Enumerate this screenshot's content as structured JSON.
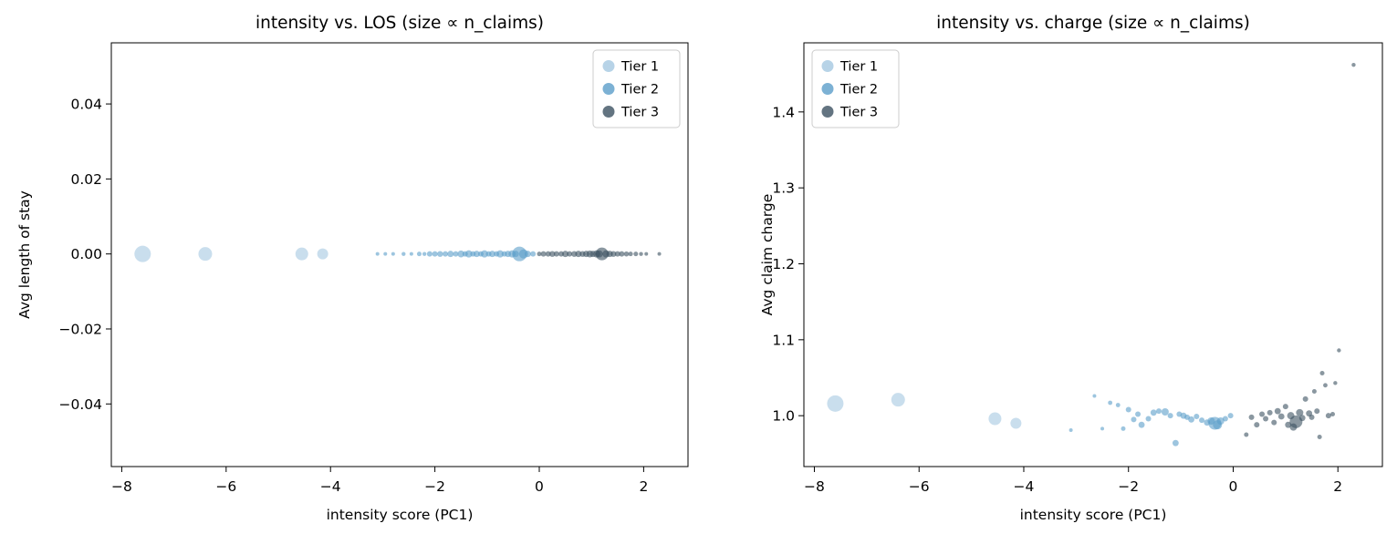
{
  "figure": {
    "background": "#ffffff",
    "spine_color": "#000000",
    "tier_colors": {
      "tier1": "#a5c8e1",
      "tier2": "#5b9ec9",
      "tier3": "#3c5161"
    }
  },
  "chart_data": [
    {
      "type": "scatter",
      "title": "intensity vs. LOS (size ∝ n_claims)",
      "xlabel": "intensity score (PC1)",
      "ylabel": "Avg length of stay",
      "xlim": [
        -8.2,
        2.85
      ],
      "ylim": [
        -0.0567,
        0.0563
      ],
      "xticks": [
        -8,
        -6,
        -4,
        -2,
        0,
        2
      ],
      "xtick_labels": [
        "−8",
        "−6",
        "−4",
        "−2",
        "0",
        "2"
      ],
      "yticks": [
        -0.04,
        -0.02,
        0.0,
        0.02,
        0.04
      ],
      "ytick_labels": [
        "−0.04",
        "−0.02",
        "0.00",
        "0.02",
        "0.04"
      ],
      "grid": false,
      "legend": {
        "position": "top-right",
        "entries": [
          {
            "label": "Tier 1",
            "color": "#a5c8e1"
          },
          {
            "label": "Tier 2",
            "color": "#5b9ec9"
          },
          {
            "label": "Tier 3",
            "color": "#3c5161"
          }
        ]
      },
      "series": [
        {
          "name": "Tier 1",
          "color": "#a5c8e1",
          "points": [
            [
              -7.6,
              0,
              9
            ],
            [
              -6.4,
              0,
              7.5
            ],
            [
              -4.55,
              0,
              7
            ],
            [
              -4.15,
              0,
              6
            ]
          ]
        },
        {
          "name": "Tier 2",
          "color": "#5b9ec9",
          "points": [
            [
              -3.1,
              0,
              2
            ],
            [
              -2.95,
              0,
              2
            ],
            [
              -2.8,
              0,
              2
            ],
            [
              -2.6,
              0,
              2.2
            ],
            [
              -2.45,
              0,
              2
            ],
            [
              -2.3,
              0,
              2.5
            ],
            [
              -2.2,
              0,
              2.2
            ],
            [
              -2.1,
              0,
              3
            ],
            [
              -2.0,
              0,
              3
            ],
            [
              -1.9,
              0,
              3.2
            ],
            [
              -1.8,
              0,
              3
            ],
            [
              -1.7,
              0,
              3.5
            ],
            [
              -1.6,
              0,
              3
            ],
            [
              -1.5,
              0,
              3.8
            ],
            [
              -1.42,
              0,
              3
            ],
            [
              -1.35,
              0,
              4
            ],
            [
              -1.27,
              0,
              3
            ],
            [
              -1.2,
              0,
              3.5
            ],
            [
              -1.12,
              0,
              3
            ],
            [
              -1.05,
              0,
              4
            ],
            [
              -0.97,
              0,
              3
            ],
            [
              -0.9,
              0,
              3.5
            ],
            [
              -0.82,
              0,
              3
            ],
            [
              -0.75,
              0,
              4
            ],
            [
              -0.67,
              0,
              3
            ],
            [
              -0.6,
              0,
              3.5
            ],
            [
              -0.52,
              0,
              4
            ],
            [
              -0.45,
              0,
              3.5
            ],
            [
              -0.38,
              0,
              8
            ],
            [
              -0.3,
              0,
              5
            ],
            [
              -0.22,
              0,
              3.5
            ],
            [
              -0.12,
              0,
              3
            ]
          ]
        },
        {
          "name": "Tier 3",
          "color": "#3c5161",
          "points": [
            [
              0.0,
              0,
              2.5
            ],
            [
              0.08,
              0,
              3
            ],
            [
              0.17,
              0,
              3
            ],
            [
              0.25,
              0,
              3.2
            ],
            [
              0.33,
              0,
              3
            ],
            [
              0.42,
              0,
              3
            ],
            [
              0.5,
              0,
              3.5
            ],
            [
              0.58,
              0,
              3
            ],
            [
              0.67,
              0,
              3.2
            ],
            [
              0.75,
              0,
              3.5
            ],
            [
              0.83,
              0,
              3.2
            ],
            [
              0.9,
              0,
              3.5
            ],
            [
              0.97,
              0,
              3.8
            ],
            [
              1.03,
              0,
              3.5
            ],
            [
              1.1,
              0,
              4
            ],
            [
              1.15,
              0,
              4
            ],
            [
              1.2,
              0,
              7
            ],
            [
              1.28,
              0,
              4
            ],
            [
              1.35,
              0,
              3.5
            ],
            [
              1.42,
              0,
              3.2
            ],
            [
              1.5,
              0,
              3
            ],
            [
              1.58,
              0,
              3
            ],
            [
              1.67,
              0,
              2.8
            ],
            [
              1.75,
              0,
              2.5
            ],
            [
              1.85,
              0,
              2.5
            ],
            [
              1.95,
              0,
              2.2
            ],
            [
              2.05,
              0,
              2
            ],
            [
              2.3,
              0,
              2
            ]
          ]
        }
      ]
    },
    {
      "type": "scatter",
      "title": "intensity vs. charge (size ∝ n_claims)",
      "xlabel": "intensity score (PC1)",
      "ylabel": "Avg claim charge",
      "xlim": [
        -8.2,
        2.85
      ],
      "ylim": [
        0.933,
        1.491
      ],
      "xticks": [
        -8,
        -6,
        -4,
        -2,
        0,
        2
      ],
      "xtick_labels": [
        "−8",
        "−6",
        "−4",
        "−2",
        "0",
        "2"
      ],
      "yticks": [
        1.0,
        1.1,
        1.2,
        1.3,
        1.4
      ],
      "ytick_labels": [
        "1.0",
        "1.1",
        "1.2",
        "1.3",
        "1.4"
      ],
      "grid": false,
      "legend": {
        "position": "top-left",
        "entries": [
          {
            "label": "Tier 1",
            "color": "#a5c8e1"
          },
          {
            "label": "Tier 2",
            "color": "#5b9ec9"
          },
          {
            "label": "Tier 3",
            "color": "#3c5161"
          }
        ]
      },
      "series": [
        {
          "name": "Tier 1",
          "color": "#a5c8e1",
          "points": [
            [
              -7.6,
              1.016,
              9
            ],
            [
              -6.4,
              1.021,
              7.5
            ],
            [
              -4.55,
              0.996,
              7
            ],
            [
              -4.15,
              0.99,
              6
            ]
          ]
        },
        {
          "name": "Tier 2",
          "color": "#5b9ec9",
          "points": [
            [
              -3.1,
              0.981,
              2
            ],
            [
              -2.65,
              1.026,
              2
            ],
            [
              -2.5,
              0.983,
              2
            ],
            [
              -2.35,
              1.017,
              2.4
            ],
            [
              -2.2,
              1.014,
              2.4
            ],
            [
              -2.1,
              0.983,
              2.5
            ],
            [
              -2.0,
              1.008,
              3
            ],
            [
              -1.9,
              0.995,
              3
            ],
            [
              -1.82,
              1.002,
              3
            ],
            [
              -1.75,
              0.988,
              3.4
            ],
            [
              -1.62,
              0.996,
              3
            ],
            [
              -1.52,
              1.004,
              3.4
            ],
            [
              -1.42,
              1.006,
              3
            ],
            [
              -1.3,
              1.005,
              4
            ],
            [
              -1.2,
              1.0,
              3
            ],
            [
              -1.1,
              0.964,
              3.4
            ],
            [
              -1.03,
              1.002,
              3
            ],
            [
              -0.95,
              1.0,
              3.4
            ],
            [
              -0.88,
              0.998,
              3
            ],
            [
              -0.8,
              0.995,
              3.4
            ],
            [
              -0.7,
              0.999,
              3
            ],
            [
              -0.6,
              0.994,
              3
            ],
            [
              -0.5,
              0.991,
              3.4
            ],
            [
              -0.42,
              0.993,
              4
            ],
            [
              -0.35,
              0.99,
              7
            ],
            [
              -0.3,
              0.988,
              5
            ],
            [
              -0.24,
              0.993,
              4
            ],
            [
              -0.15,
              0.996,
              3
            ],
            [
              -0.05,
              1.0,
              3
            ]
          ]
        },
        {
          "name": "Tier 3",
          "color": "#3c5161",
          "points": [
            [
              0.25,
              0.975,
              2.5
            ],
            [
              0.35,
              0.998,
              3
            ],
            [
              0.45,
              0.988,
              3
            ],
            [
              0.55,
              1.002,
              3
            ],
            [
              0.62,
              0.996,
              3
            ],
            [
              0.7,
              1.004,
              3
            ],
            [
              0.78,
              0.991,
              3
            ],
            [
              0.85,
              1.006,
              3.4
            ],
            [
              0.92,
              0.999,
              3.4
            ],
            [
              1.0,
              1.012,
              3
            ],
            [
              1.05,
              0.988,
              3.4
            ],
            [
              1.1,
              1.0,
              4
            ],
            [
              1.15,
              0.985,
              4
            ],
            [
              1.2,
              0.992,
              7
            ],
            [
              1.27,
              1.004,
              4
            ],
            [
              1.32,
              0.997,
              3.4
            ],
            [
              1.38,
              1.022,
              3
            ],
            [
              1.45,
              1.003,
              3.4
            ],
            [
              1.5,
              0.998,
              3
            ],
            [
              1.55,
              1.032,
              2.5
            ],
            [
              1.6,
              1.006,
              3
            ],
            [
              1.65,
              0.972,
              2.5
            ],
            [
              1.7,
              1.056,
              2.5
            ],
            [
              1.76,
              1.04,
              2.4
            ],
            [
              1.82,
              1.0,
              3
            ],
            [
              1.9,
              1.002,
              2.5
            ],
            [
              1.95,
              1.043,
              2.2
            ],
            [
              2.02,
              1.086,
              2.2
            ],
            [
              2.3,
              1.462,
              2.2
            ]
          ]
        }
      ]
    }
  ]
}
